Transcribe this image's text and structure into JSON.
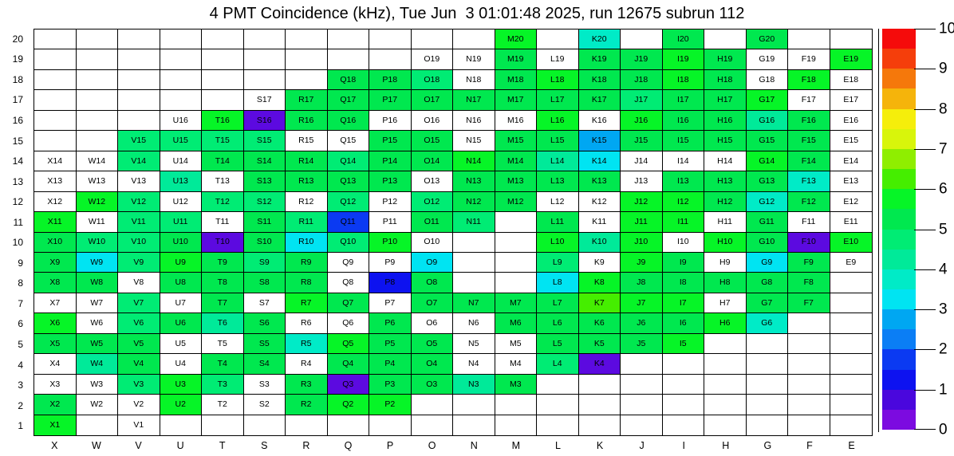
{
  "title": "4 PMT Coincidence (kHz), Tue Jun  3 01:01:48 2025, run 12675 subrun 112",
  "chart_data": {
    "type": "heatmap",
    "unit": "kHz",
    "title": "4 PMT Coincidence (kHz), Tue Jun  3 01:01:48 2025, run 12675 subrun 112",
    "x_tick_labels": [
      "X",
      "W",
      "V",
      "U",
      "T",
      "S",
      "R",
      "Q",
      "P",
      "O",
      "N",
      "M",
      "L",
      "K",
      "J",
      "I",
      "H",
      "G",
      "F",
      "E"
    ],
    "y_tick_labels": [
      "20",
      "19",
      "18",
      "17",
      "16",
      "15",
      "14",
      "13",
      "12",
      "11",
      "10",
      "9",
      "8",
      "7",
      "6",
      "5",
      "4",
      "3",
      "2",
      "1"
    ],
    "grid": "on",
    "legend_position": "right-colorbar",
    "colorbar": {
      "min": 0,
      "max": 10,
      "ticks": [
        "0",
        "1",
        "2",
        "3",
        "4",
        "5",
        "6",
        "7",
        "8",
        "9",
        "10"
      ],
      "bands_bottom_to_top": [
        "#7c0be0",
        "#4a07dd",
        "#0d12f0",
        "#0b3af2",
        "#0b7ef5",
        "#00a7f2",
        "#00e4f2",
        "#00ebc7",
        "#00ea99",
        "#00ec74",
        "#00e84f",
        "#06f527",
        "#45ee00",
        "#8fee00",
        "#d8f50b",
        "#f5ee0b",
        "#f5b40b",
        "#f5780b",
        "#f53e0b",
        "#f50b0b"
      ]
    },
    "palette_classes": [
      {
        "code": "w",
        "color": "#ffffff",
        "approx_value_khz": 0.0
      },
      {
        "code": "vi",
        "color": "#5c0ae0",
        "approx_value_khz": 0.5
      },
      {
        "code": "db",
        "color": "#0d12f0",
        "approx_value_khz": 1.3
      },
      {
        "code": "bl",
        "color": "#0b3af2",
        "approx_value_khz": 1.8
      },
      {
        "code": "lb",
        "color": "#00a7f2",
        "approx_value_khz": 2.7
      },
      {
        "code": "cy",
        "color": "#00e4f2",
        "approx_value_khz": 3.2
      },
      {
        "code": "aq",
        "color": "#00ebc7",
        "approx_value_khz": 3.7
      },
      {
        "code": "tl",
        "color": "#00ea99",
        "approx_value_khz": 4.1
      },
      {
        "code": "sg",
        "color": "#00ec74",
        "approx_value_khz": 4.6
      },
      {
        "code": "g",
        "color": "#00e84f",
        "approx_value_khz": 5.1
      },
      {
        "code": "bg",
        "color": "#06f527",
        "approx_value_khz": 5.7
      },
      {
        "code": "lg",
        "color": "#45ee00",
        "approx_value_khz": 6.2
      }
    ],
    "cell_label_rule": "column letter + row number; empty string means no PMT cell (blank white, no label); 'w' means labeled cell with white (zero) fill",
    "cells_rows_top_to_bottom": [
      [
        "",
        "",
        "",
        "",
        "",
        "",
        "",
        "",
        "",
        "",
        "",
        "bg",
        "",
        "aq",
        "",
        "g",
        "",
        "g",
        "",
        ""
      ],
      [
        "",
        "",
        "",
        "",
        "",
        "",
        "",
        "",
        "",
        "w",
        "w",
        "g",
        "w",
        "g",
        "g",
        "bg",
        "g",
        "w",
        "w",
        "bg"
      ],
      [
        "",
        "",
        "",
        "",
        "",
        "",
        "",
        "g",
        "g",
        "sg",
        "w",
        "g",
        "bg",
        "g",
        "g",
        "bg",
        "g",
        "w",
        "bg",
        "w"
      ],
      [
        "",
        "",
        "",
        "",
        "",
        "w",
        "g",
        "g",
        "g",
        "g",
        "g",
        "g",
        "g",
        "g",
        "sg",
        "g",
        "g",
        "bg",
        "w",
        "w"
      ],
      [
        "",
        "",
        "",
        "w",
        "bg",
        "vi",
        "g",
        "g",
        "w",
        "w",
        "w",
        "w",
        "bg",
        "w",
        "bg",
        "g",
        "g",
        "tl",
        "g",
        "w"
      ],
      [
        "",
        "",
        "sg",
        "sg",
        "sg",
        "sg",
        "w",
        "w",
        "g",
        "g",
        "w",
        "g",
        "g",
        "lb",
        "g",
        "g",
        "g",
        "g",
        "g",
        "w"
      ],
      [
        "w",
        "w",
        "sg",
        "w",
        "g",
        "g",
        "g",
        "sg",
        "g",
        "g",
        "bg",
        "g",
        "tl",
        "cy",
        "w",
        "w",
        "w",
        "bg",
        "g",
        "w"
      ],
      [
        "w",
        "w",
        "w",
        "tl",
        "w",
        "g",
        "g",
        "g",
        "g",
        "w",
        "g",
        "g",
        "g",
        "g",
        "w",
        "g",
        "g",
        "g",
        "aq",
        "w"
      ],
      [
        "w",
        "bg",
        "sg",
        "w",
        "sg",
        "sg",
        "w",
        "sg",
        "w",
        "sg",
        "g",
        "g",
        "w",
        "w",
        "bg",
        "bg",
        "g",
        "aq",
        "g",
        "w"
      ],
      [
        "bg",
        "w",
        "sg",
        "sg",
        "w",
        "g",
        "sg",
        "bl",
        "w",
        "g",
        "sg",
        "",
        "g",
        "w",
        "bg",
        "bg",
        "w",
        "g",
        "w",
        "w"
      ],
      [
        "g",
        "sg",
        "sg",
        "g",
        "vi",
        "g",
        "cy",
        "sg",
        "bg",
        "w",
        "",
        "",
        "bg",
        "tl",
        "bg",
        "w",
        "bg",
        "g",
        "vi",
        "bg"
      ],
      [
        "g",
        "cy",
        "sg",
        "bg",
        "g",
        "sg",
        "g",
        "w",
        "w",
        "cy",
        "",
        "",
        "sg",
        "w",
        "bg",
        "g",
        "w",
        "cy",
        "g",
        "w"
      ],
      [
        "g",
        "g",
        "w",
        "g",
        "g",
        "g",
        "g",
        "w",
        "db",
        "g",
        "",
        "",
        "cy",
        "bg",
        "g",
        "g",
        "g",
        "g",
        "g",
        ""
      ],
      [
        "w",
        "w",
        "sg",
        "w",
        "g",
        "w",
        "bg",
        "g",
        "w",
        "g",
        "g",
        "g",
        "g",
        "lg",
        "bg",
        "bg",
        "w",
        "g",
        "g",
        ""
      ],
      [
        "bg",
        "w",
        "sg",
        "g",
        "tl",
        "g",
        "w",
        "w",
        "g",
        "w",
        "w",
        "g",
        "g",
        "g",
        "g",
        "g",
        "bg",
        "aq",
        "",
        ""
      ],
      [
        "g",
        "g",
        "g",
        "w",
        "w",
        "g",
        "aq",
        "bg",
        "g",
        "g",
        "w",
        "w",
        "g",
        "g",
        "g",
        "bg",
        "",
        "",
        "",
        ""
      ],
      [
        "w",
        "tl",
        "g",
        "w",
        "g",
        "g",
        "w",
        "g",
        "g",
        "g",
        "w",
        "w",
        "sg",
        "vi",
        "",
        "",
        "",
        "",
        "",
        ""
      ],
      [
        "w",
        "w",
        "sg",
        "bg",
        "sg",
        "w",
        "g",
        "vi",
        "g",
        "g",
        "tl",
        "g",
        "",
        "",
        "",
        "",
        "",
        "",
        "",
        ""
      ],
      [
        "g",
        "w",
        "w",
        "bg",
        "w",
        "w",
        "g",
        "bg",
        "bg",
        "",
        "",
        "",
        "",
        "",
        "",
        "",
        "",
        "",
        "",
        ""
      ],
      [
        "bg",
        "",
        "w",
        "",
        "",
        "",
        "",
        "",
        "",
        "",
        "",
        "",
        "",
        "",
        "",
        "",
        "",
        "",
        "",
        ""
      ]
    ]
  }
}
